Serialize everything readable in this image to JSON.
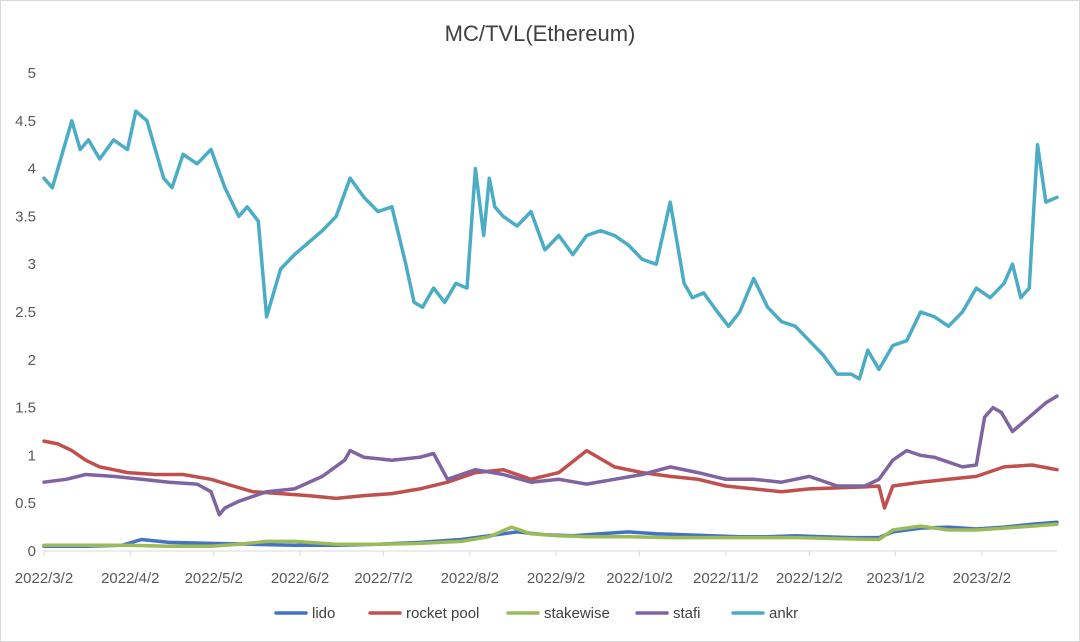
{
  "chart_data": {
    "type": "line",
    "title": "MC/TVL(Ethereum)",
    "xlabel": "",
    "ylabel": "",
    "ylim": [
      0,
      5
    ],
    "yticks": [
      0,
      0.5,
      1,
      1.5,
      2,
      2.5,
      3,
      3.5,
      4,
      4.5,
      5
    ],
    "ytick_labels": [
      "0",
      "0.5",
      "1",
      "1.5",
      "2",
      "2.5",
      "3",
      "3.5",
      "4",
      "4.5",
      "5"
    ],
    "x_start": "2022-03-02",
    "x_end": "2023-03-01",
    "xtick_labels": [
      "2022/3/2",
      "2022/4/2",
      "2022/5/2",
      "2022/6/2",
      "2022/7/2",
      "2022/8/2",
      "2022/9/2",
      "2022/10/2",
      "2022/11/2",
      "2022/12/2",
      "2023/1/2",
      "2023/2/2"
    ],
    "xtick_days": [
      0,
      31,
      61,
      92,
      122,
      153,
      184,
      214,
      245,
      275,
      306,
      337
    ],
    "legend_position": "bottom",
    "series": [
      {
        "name": "lido",
        "color": "#4472c4",
        "x": [
          0,
          15,
          28,
          35,
          45,
          60,
          75,
          90,
          105,
          120,
          135,
          150,
          160,
          170,
          180,
          190,
          200,
          210,
          220,
          230,
          240,
          250,
          260,
          270,
          280,
          290,
          300,
          305,
          315,
          325,
          335,
          345,
          355,
          364
        ],
        "y": [
          0.05,
          0.05,
          0.06,
          0.12,
          0.09,
          0.08,
          0.07,
          0.06,
          0.06,
          0.07,
          0.09,
          0.12,
          0.16,
          0.2,
          0.17,
          0.16,
          0.18,
          0.2,
          0.18,
          0.17,
          0.16,
          0.15,
          0.15,
          0.16,
          0.15,
          0.14,
          0.14,
          0.2,
          0.24,
          0.25,
          0.23,
          0.25,
          0.28,
          0.3
        ]
      },
      {
        "name": "rocket pool",
        "color": "#c0504d",
        "x": [
          0,
          5,
          10,
          15,
          20,
          25,
          30,
          40,
          50,
          60,
          68,
          75,
          85,
          95,
          105,
          115,
          125,
          135,
          145,
          155,
          165,
          175,
          185,
          195,
          205,
          215,
          225,
          235,
          245,
          255,
          265,
          275,
          285,
          295,
          300,
          302,
          305,
          315,
          325,
          335,
          345,
          355,
          364
        ],
        "y": [
          1.15,
          1.12,
          1.05,
          0.95,
          0.88,
          0.85,
          0.82,
          0.8,
          0.8,
          0.75,
          0.68,
          0.62,
          0.6,
          0.58,
          0.55,
          0.58,
          0.6,
          0.65,
          0.72,
          0.82,
          0.85,
          0.75,
          0.82,
          1.05,
          0.88,
          0.82,
          0.78,
          0.75,
          0.68,
          0.65,
          0.62,
          0.65,
          0.66,
          0.67,
          0.68,
          0.45,
          0.68,
          0.72,
          0.75,
          0.78,
          0.88,
          0.9,
          0.85
        ]
      },
      {
        "name": "stakewise",
        "color": "#9bbb59",
        "x": [
          0,
          15,
          30,
          45,
          60,
          70,
          80,
          90,
          105,
          120,
          135,
          150,
          160,
          168,
          175,
          185,
          195,
          210,
          225,
          240,
          255,
          270,
          285,
          300,
          305,
          315,
          325,
          335,
          345,
          355,
          364
        ],
        "y": [
          0.06,
          0.06,
          0.06,
          0.05,
          0.05,
          0.07,
          0.1,
          0.1,
          0.07,
          0.07,
          0.08,
          0.1,
          0.15,
          0.25,
          0.18,
          0.16,
          0.15,
          0.15,
          0.14,
          0.14,
          0.14,
          0.14,
          0.13,
          0.12,
          0.22,
          0.26,
          0.22,
          0.22,
          0.24,
          0.26,
          0.28
        ]
      },
      {
        "name": "stafi",
        "color": "#8064a2",
        "x": [
          0,
          8,
          15,
          25,
          35,
          45,
          55,
          60,
          63,
          65,
          70,
          80,
          90,
          100,
          108,
          110,
          115,
          125,
          135,
          140,
          145,
          155,
          165,
          175,
          185,
          195,
          205,
          215,
          225,
          235,
          245,
          255,
          265,
          275,
          285,
          295,
          300,
          305,
          310,
          315,
          320,
          330,
          335,
          338,
          341,
          344,
          348,
          352,
          356,
          360,
          364
        ],
        "y": [
          0.72,
          0.75,
          0.8,
          0.78,
          0.75,
          0.72,
          0.7,
          0.62,
          0.38,
          0.45,
          0.52,
          0.62,
          0.65,
          0.78,
          0.95,
          1.05,
          0.98,
          0.95,
          0.98,
          1.02,
          0.75,
          0.85,
          0.8,
          0.72,
          0.75,
          0.7,
          0.75,
          0.8,
          0.88,
          0.82,
          0.75,
          0.75,
          0.72,
          0.78,
          0.68,
          0.68,
          0.75,
          0.95,
          1.05,
          1.0,
          0.98,
          0.88,
          0.9,
          1.4,
          1.5,
          1.45,
          1.25,
          1.35,
          1.45,
          1.55,
          1.62
        ]
      },
      {
        "name": "ankr",
        "color": "#4bacc6",
        "x": [
          0,
          3,
          6,
          10,
          13,
          16,
          20,
          25,
          30,
          33,
          37,
          40,
          43,
          46,
          50,
          55,
          60,
          65,
          70,
          73,
          77,
          80,
          85,
          90,
          100,
          105,
          110,
          115,
          120,
          125,
          130,
          133,
          136,
          140,
          144,
          148,
          152,
          155,
          158,
          160,
          162,
          165,
          170,
          175,
          180,
          185,
          190,
          195,
          200,
          205,
          210,
          215,
          220,
          225,
          230,
          233,
          237,
          242,
          246,
          250,
          255,
          260,
          265,
          270,
          275,
          280,
          285,
          290,
          293,
          296,
          300,
          305,
          310,
          315,
          320,
          325,
          330,
          335,
          340,
          345,
          348,
          351,
          354,
          357,
          360,
          364
        ],
        "y": [
          3.9,
          3.8,
          4.1,
          4.5,
          4.2,
          4.3,
          4.1,
          4.3,
          4.2,
          4.6,
          4.5,
          4.2,
          3.9,
          3.8,
          4.15,
          4.05,
          4.2,
          3.8,
          3.5,
          3.6,
          3.45,
          2.45,
          2.95,
          3.1,
          3.35,
          3.5,
          3.9,
          3.7,
          3.55,
          3.6,
          3.0,
          2.6,
          2.55,
          2.75,
          2.6,
          2.8,
          2.75,
          4.0,
          3.3,
          3.9,
          3.6,
          3.5,
          3.4,
          3.55,
          3.15,
          3.3,
          3.1,
          3.3,
          3.35,
          3.3,
          3.2,
          3.05,
          3.0,
          3.65,
          2.8,
          2.65,
          2.7,
          2.5,
          2.35,
          2.5,
          2.85,
          2.55,
          2.4,
          2.35,
          2.2,
          2.05,
          1.85,
          1.85,
          1.8,
          2.1,
          1.9,
          2.15,
          2.2,
          2.5,
          2.45,
          2.35,
          2.5,
          2.75,
          2.65,
          2.8,
          3.0,
          2.65,
          2.75,
          4.25,
          3.65,
          3.7
        ]
      }
    ]
  }
}
